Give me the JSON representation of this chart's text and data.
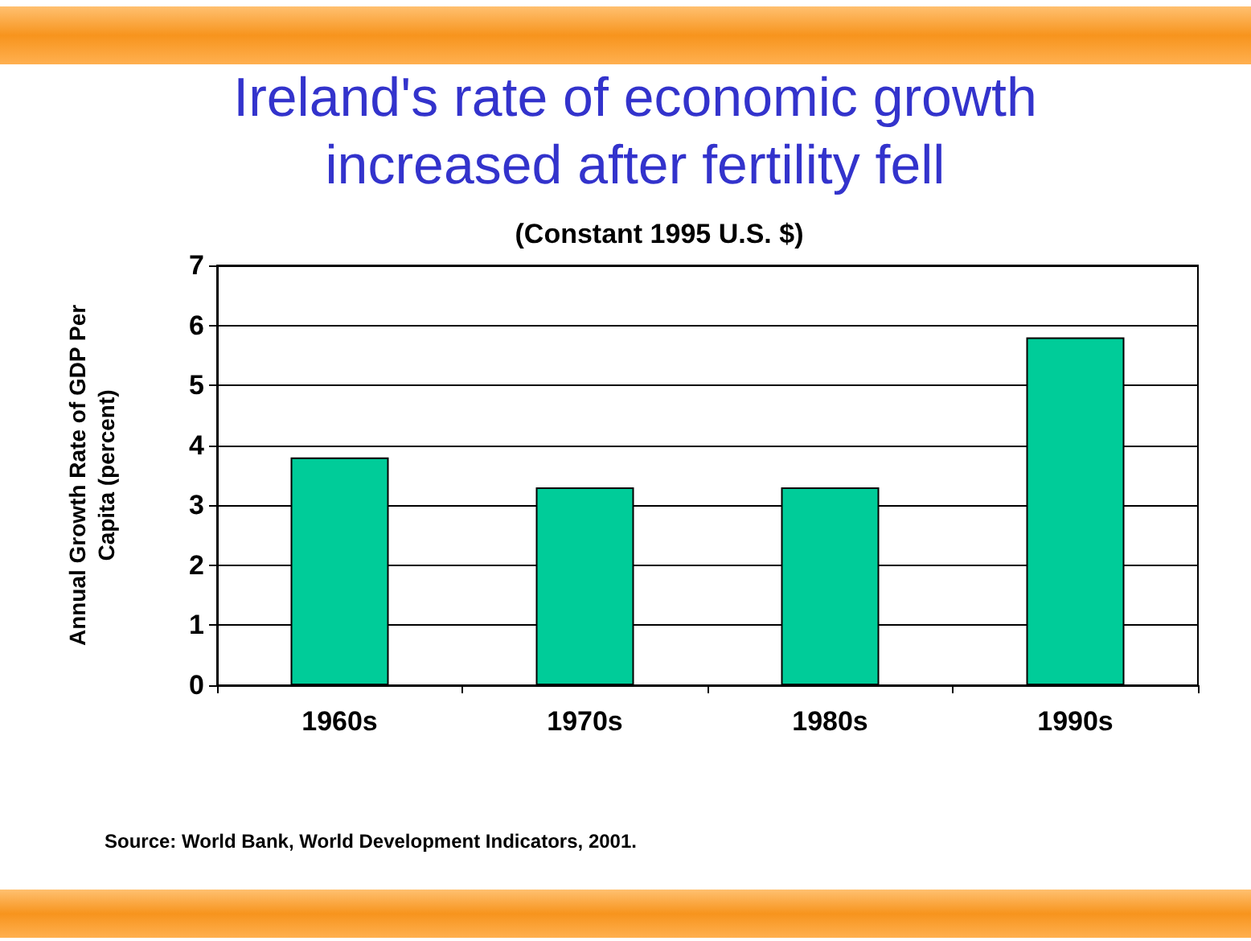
{
  "chart_data": {
    "type": "bar",
    "title": "Ireland's rate of economic growth increased after fertility fell",
    "subtitle": "(Constant 1995 U.S. $)",
    "ylabel": "Annual Growth Rate of GDP Per Capita (percent)",
    "categories": [
      "1960s",
      "1970s",
      "1980s",
      "1990s"
    ],
    "values": [
      3.8,
      3.3,
      3.3,
      5.8
    ],
    "color": "#00cc99",
    "ylim": [
      0,
      7
    ],
    "yticks": [
      0,
      1,
      2,
      3,
      4,
      5,
      6,
      7
    ],
    "grid": "y",
    "annotations": [
      "Source: World Bank, World Development Indicators, 2001."
    ]
  }
}
